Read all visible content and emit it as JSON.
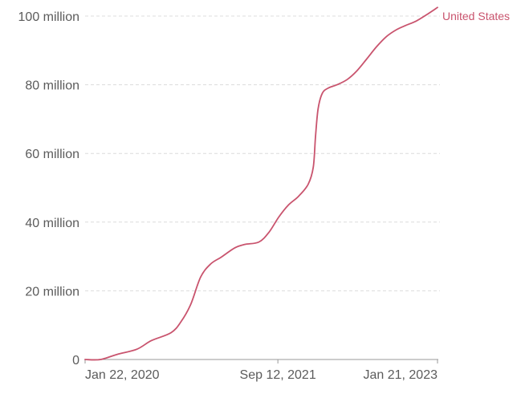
{
  "chart_data": {
    "type": "line",
    "x_scale": "time",
    "x_range": [
      "2020-01-22",
      "2023-01-21"
    ],
    "ylim": [
      0,
      100000000
    ],
    "y_ticks": [
      {
        "value": 0,
        "label": "0"
      },
      {
        "value": 20000000,
        "label": "20 million"
      },
      {
        "value": 40000000,
        "label": "40 million"
      },
      {
        "value": 60000000,
        "label": "60 million"
      },
      {
        "value": 80000000,
        "label": "80 million"
      },
      {
        "value": 100000000,
        "label": "100 million"
      }
    ],
    "x_ticks": [
      {
        "value": "2020-01-22",
        "label": "Jan 22, 2020"
      },
      {
        "value": "2021-09-12",
        "label": "Sep 12, 2021"
      },
      {
        "value": "2023-01-21",
        "label": "Jan 21, 2023"
      }
    ],
    "grid": true,
    "series": [
      {
        "name": "United States",
        "color": "#c9546e",
        "points": [
          {
            "x": "2020-01-22",
            "y": 0
          },
          {
            "x": "2020-03-10",
            "y": 0
          },
          {
            "x": "2020-05-01",
            "y": 1500000
          },
          {
            "x": "2020-07-01",
            "y": 3000000
          },
          {
            "x": "2020-08-15",
            "y": 5500000
          },
          {
            "x": "2020-10-15",
            "y": 7800000
          },
          {
            "x": "2020-11-15",
            "y": 11000000
          },
          {
            "x": "2020-12-15",
            "y": 16000000
          },
          {
            "x": "2021-01-15",
            "y": 24000000
          },
          {
            "x": "2021-02-15",
            "y": 27800000
          },
          {
            "x": "2021-03-20",
            "y": 29800000
          },
          {
            "x": "2021-05-01",
            "y": 32500000
          },
          {
            "x": "2021-06-01",
            "y": 33500000
          },
          {
            "x": "2021-07-15",
            "y": 34200000
          },
          {
            "x": "2021-08-15",
            "y": 37000000
          },
          {
            "x": "2021-09-15",
            "y": 41500000
          },
          {
            "x": "2021-10-15",
            "y": 45000000
          },
          {
            "x": "2021-11-15",
            "y": 47500000
          },
          {
            "x": "2021-12-15",
            "y": 51000000
          },
          {
            "x": "2021-12-31",
            "y": 56000000
          },
          {
            "x": "2022-01-07",
            "y": 65000000
          },
          {
            "x": "2022-01-15",
            "y": 73000000
          },
          {
            "x": "2022-01-28",
            "y": 77500000
          },
          {
            "x": "2022-02-15",
            "y": 79000000
          },
          {
            "x": "2022-03-15",
            "y": 80000000
          },
          {
            "x": "2022-04-15",
            "y": 81500000
          },
          {
            "x": "2022-05-15",
            "y": 84000000
          },
          {
            "x": "2022-06-15",
            "y": 87500000
          },
          {
            "x": "2022-07-15",
            "y": 91000000
          },
          {
            "x": "2022-08-15",
            "y": 94000000
          },
          {
            "x": "2022-09-15",
            "y": 96000000
          },
          {
            "x": "2022-10-15",
            "y": 97300000
          },
          {
            "x": "2022-11-15",
            "y": 98500000
          },
          {
            "x": "2022-12-15",
            "y": 100200000
          },
          {
            "x": "2023-01-21",
            "y": 102500000
          }
        ]
      }
    ]
  }
}
